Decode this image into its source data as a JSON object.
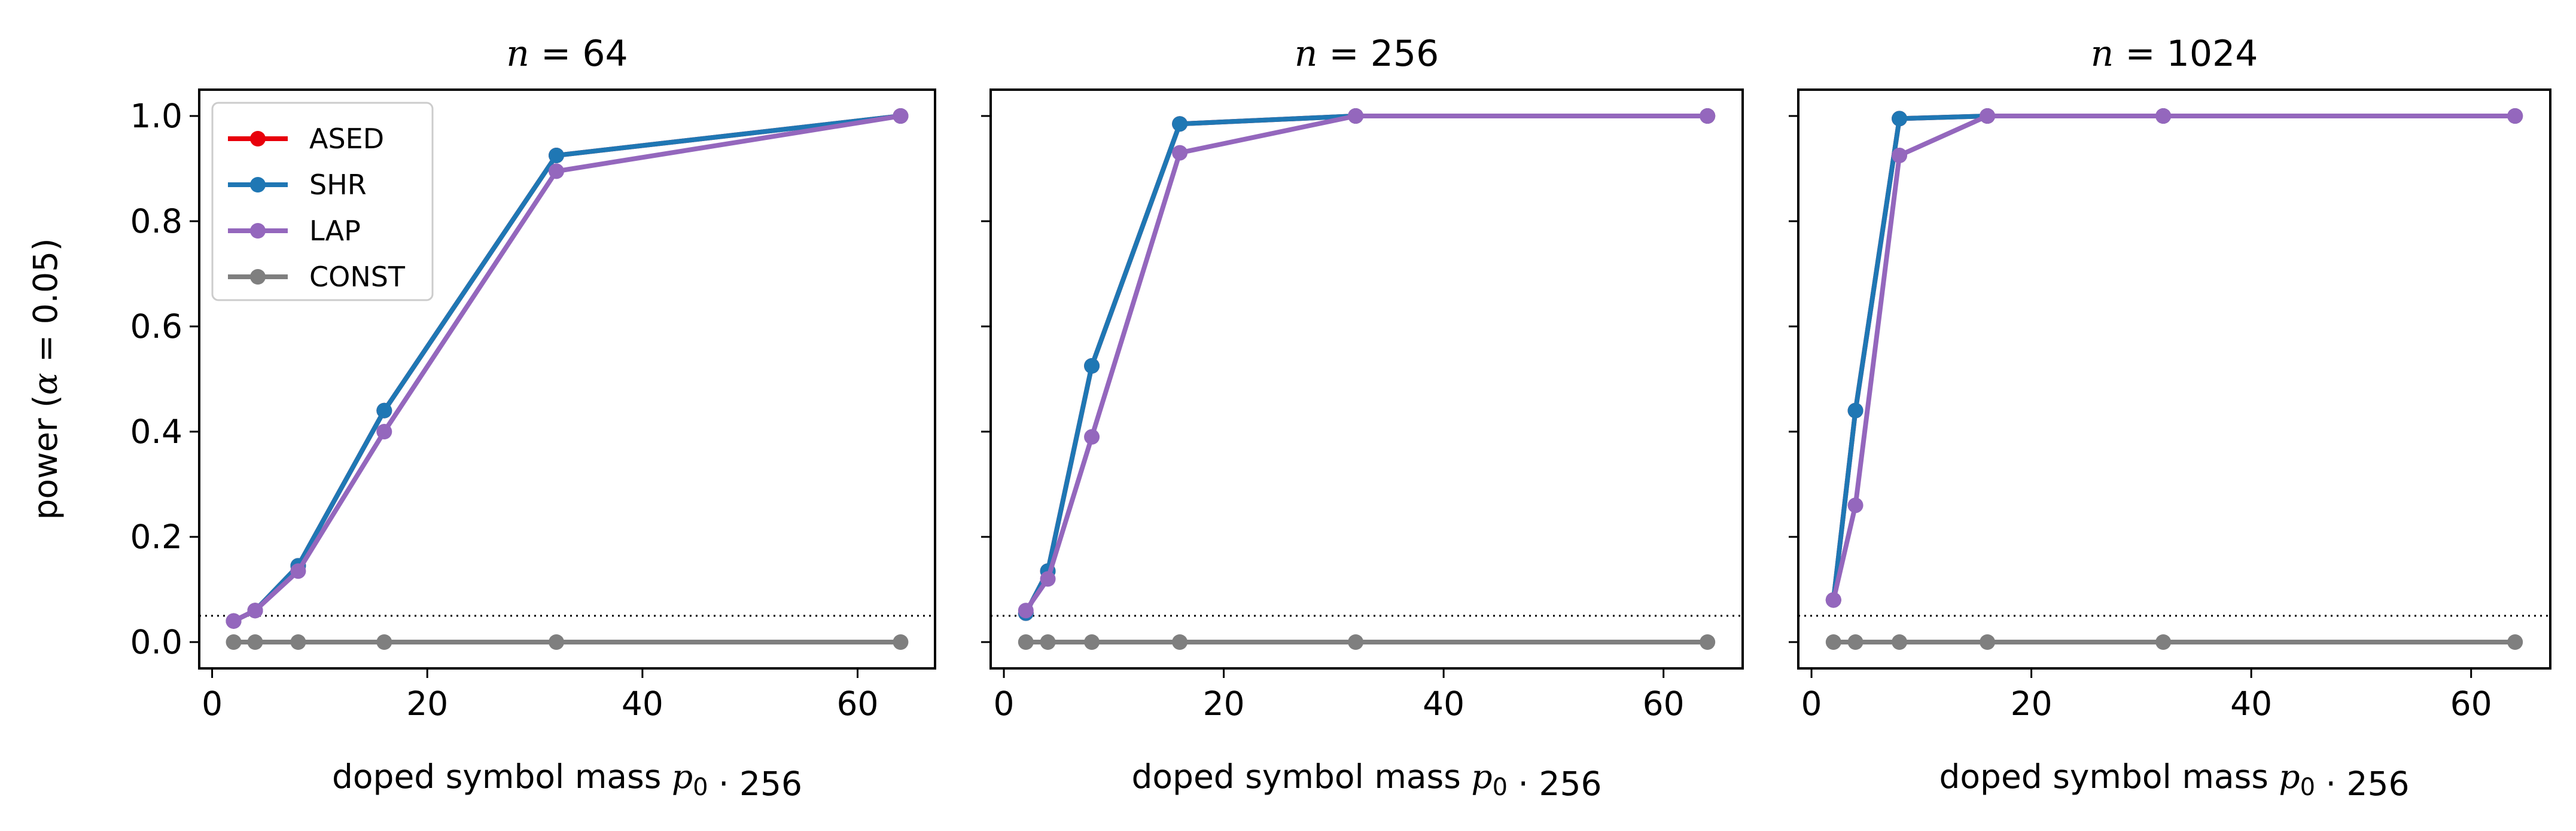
{
  "chart_data": [
    {
      "type": "line",
      "title": "n = 64",
      "xlabel": "doped symbol mass p0 · 256",
      "ylabel": "power (α = 0.05)",
      "xlim": [
        -1.2,
        67.2
      ],
      "ylim": [
        -0.05,
        1.05
      ],
      "xticks": [
        0,
        20,
        40,
        60
      ],
      "yticks": [
        0.0,
        0.2,
        0.4,
        0.6,
        0.8,
        1.0
      ],
      "reference_line": {
        "y": 0.05,
        "style": "dotted"
      },
      "legend": {
        "placement": "upper-left",
        "entries": [
          "ASED",
          "SHR",
          "LAP",
          "CONST"
        ]
      },
      "x": [
        2,
        4,
        8,
        16,
        32,
        64
      ],
      "series": [
        {
          "name": "ASED",
          "color": "#e8000b",
          "values": [
            0.04,
            0.06,
            0.145,
            0.44,
            0.925,
            1.0
          ]
        },
        {
          "name": "SHR",
          "color": "#1f77b4",
          "values": [
            0.04,
            0.06,
            0.145,
            0.44,
            0.925,
            1.0
          ]
        },
        {
          "name": "LAP",
          "color": "#9467bd",
          "values": [
            0.04,
            0.06,
            0.135,
            0.4,
            0.895,
            1.0
          ]
        },
        {
          "name": "CONST",
          "color": "#7f7f7f",
          "values": [
            0.0,
            0.0,
            0.0,
            0.0,
            0.0,
            0.0
          ]
        }
      ]
    },
    {
      "type": "line",
      "title": "n = 256",
      "xlabel": "doped symbol mass p0 · 256",
      "xlim": [
        -1.2,
        67.2
      ],
      "ylim": [
        -0.05,
        1.05
      ],
      "xticks": [
        0,
        20,
        40,
        60
      ],
      "reference_line": {
        "y": 0.05,
        "style": "dotted"
      },
      "x": [
        2,
        4,
        8,
        16,
        32,
        64
      ],
      "series": [
        {
          "name": "ASED",
          "color": "#e8000b",
          "values": [
            0.055,
            0.135,
            0.525,
            0.985,
            1.0,
            1.0
          ]
        },
        {
          "name": "SHR",
          "color": "#1f77b4",
          "values": [
            0.055,
            0.135,
            0.525,
            0.985,
            1.0,
            1.0
          ]
        },
        {
          "name": "LAP",
          "color": "#9467bd",
          "values": [
            0.06,
            0.12,
            0.39,
            0.93,
            1.0,
            1.0
          ]
        },
        {
          "name": "CONST",
          "color": "#7f7f7f",
          "values": [
            0.0,
            0.0,
            0.0,
            0.0,
            0.0,
            0.0
          ]
        }
      ]
    },
    {
      "type": "line",
      "title": "n = 1024",
      "xlabel": "doped symbol mass p0 · 256",
      "xlim": [
        -1.2,
        67.2
      ],
      "ylim": [
        -0.05,
        1.05
      ],
      "xticks": [
        0,
        20,
        40,
        60
      ],
      "reference_line": {
        "y": 0.05,
        "style": "dotted"
      },
      "x": [
        2,
        4,
        8,
        16,
        32,
        64
      ],
      "series": [
        {
          "name": "ASED",
          "color": "#e8000b",
          "values": [
            0.08,
            0.44,
            0.995,
            1.0,
            1.0,
            1.0
          ]
        },
        {
          "name": "SHR",
          "color": "#1f77b4",
          "values": [
            0.08,
            0.44,
            0.995,
            1.0,
            1.0,
            1.0
          ]
        },
        {
          "name": "LAP",
          "color": "#9467bd",
          "values": [
            0.08,
            0.26,
            0.925,
            1.0,
            1.0,
            1.0
          ]
        },
        {
          "name": "CONST",
          "color": "#7f7f7f",
          "values": [
            0.0,
            0.0,
            0.0,
            0.0,
            0.0,
            0.0
          ]
        }
      ]
    }
  ]
}
